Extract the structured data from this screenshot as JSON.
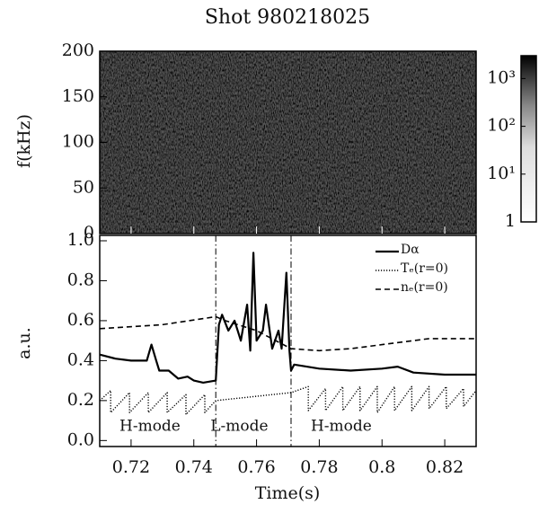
{
  "chart_data": [
    {
      "type": "spectrogram",
      "title": "Shot    980218025",
      "ylabel": "f(kHz)",
      "ylim": [
        0,
        200
      ],
      "yticks": [
        0,
        50,
        100,
        150,
        200
      ],
      "colorbar": {
        "log": true,
        "clim": [
          1,
          3000
        ],
        "ticks": [
          1,
          {
            "value": 10,
            "label": "10¹"
          },
          {
            "value": 100,
            "label": "10²"
          },
          {
            "value": 1000,
            "label": "10³"
          }
        ]
      }
    },
    {
      "type": "line",
      "xlabel": "Time(s)",
      "ylabel": "a.u.",
      "xlim": [
        0.71,
        0.83
      ],
      "xticks": [
        0.72,
        0.74,
        0.76,
        0.78,
        0.8,
        0.82
      ],
      "ylim": [
        -0.03,
        1.0
      ],
      "yticks": [
        {
          "value": 0,
          "label": "0.0"
        },
        0.2,
        0.4,
        0.6,
        0.8,
        {
          "value": 1,
          "label": "1.0"
        }
      ],
      "legend": "upper right",
      "vlines": [
        0.747,
        0.771
      ],
      "annotations": [
        "H-mode",
        "L-mode",
        "H-mode"
      ],
      "series": [
        {
          "name": "Dα",
          "color": "#000",
          "style": "solid",
          "x": [
            0.71,
            0.715,
            0.72,
            0.725,
            0.7265,
            0.728,
            0.729,
            0.732,
            0.735,
            0.738,
            0.74,
            0.743,
            0.747,
            0.748,
            0.749,
            0.751,
            0.753,
            0.755,
            0.757,
            0.758,
            0.759,
            0.76,
            0.762,
            0.763,
            0.765,
            0.767,
            0.768,
            0.7695,
            0.7705,
            0.771,
            0.772,
            0.78,
            0.79,
            0.8,
            0.805,
            0.81,
            0.82,
            0.83
          ],
          "values": [
            0.43,
            0.41,
            0.4,
            0.4,
            0.48,
            0.4,
            0.35,
            0.35,
            0.31,
            0.32,
            0.3,
            0.29,
            0.3,
            0.58,
            0.63,
            0.55,
            0.6,
            0.5,
            0.68,
            0.45,
            0.94,
            0.5,
            0.55,
            0.68,
            0.46,
            0.55,
            0.46,
            0.84,
            0.45,
            0.35,
            0.38,
            0.36,
            0.35,
            0.36,
            0.37,
            0.34,
            0.33,
            0.33
          ]
        },
        {
          "name": "Tₑ(r=0)",
          "color": "#000",
          "style": "dotted",
          "x": [
            0.71,
            0.7135,
            0.7135,
            0.7195,
            0.7195,
            0.7255,
            0.7255,
            0.7315,
            0.7315,
            0.7375,
            0.7375,
            0.7435,
            0.7435,
            0.747,
            0.771,
            0.7765,
            0.7765,
            0.782,
            0.782,
            0.7875,
            0.7875,
            0.793,
            0.793,
            0.7985,
            0.7985,
            0.804,
            0.804,
            0.8095,
            0.8095,
            0.815,
            0.815,
            0.8205,
            0.8205,
            0.826,
            0.826,
            0.83
          ],
          "values": [
            0.2,
            0.25,
            0.14,
            0.24,
            0.14,
            0.24,
            0.14,
            0.24,
            0.14,
            0.23,
            0.13,
            0.23,
            0.14,
            0.2,
            0.24,
            0.27,
            0.15,
            0.26,
            0.15,
            0.27,
            0.15,
            0.27,
            0.15,
            0.27,
            0.14,
            0.27,
            0.15,
            0.27,
            0.15,
            0.27,
            0.16,
            0.27,
            0.16,
            0.26,
            0.17,
            0.25
          ]
        },
        {
          "name": "nₑ(r=0)",
          "color": "#000",
          "style": "dashed",
          "x": [
            0.71,
            0.73,
            0.747,
            0.75,
            0.76,
            0.771,
            0.78,
            0.79,
            0.8,
            0.815,
            0.83
          ],
          "values": [
            0.56,
            0.58,
            0.62,
            0.6,
            0.55,
            0.46,
            0.45,
            0.46,
            0.48,
            0.51,
            0.51
          ]
        }
      ]
    }
  ]
}
